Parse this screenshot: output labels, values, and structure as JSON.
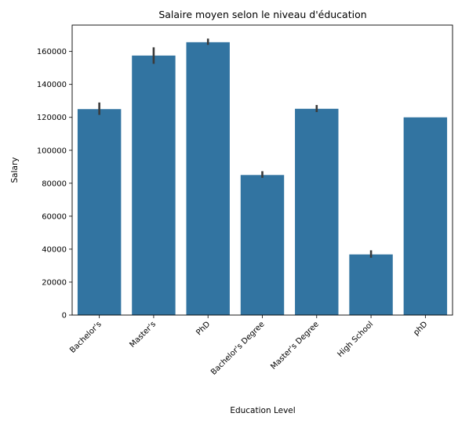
{
  "chart_data": {
    "type": "bar",
    "title": "Salaire moyen selon le niveau d'éducation",
    "xlabel": "Education Level",
    "ylabel": "Salary",
    "categories": [
      "Bachelor's",
      "Master's",
      "PhD",
      "Bachelor's Degree",
      "Master's Degree",
      "High School",
      "phD"
    ],
    "values": [
      125000,
      157500,
      165600,
      85000,
      125200,
      36800,
      120000
    ],
    "error_low": [
      121500,
      152500,
      164000,
      83300,
      123200,
      34800,
      120000
    ],
    "error_high": [
      129000,
      162500,
      167800,
      87300,
      127500,
      39300,
      120000
    ],
    "ylim": [
      0,
      176000
    ],
    "yticks": [
      0,
      20000,
      40000,
      60000,
      80000,
      100000,
      120000,
      140000,
      160000
    ],
    "xtick_rotation": 45,
    "grid": false,
    "legend": "none",
    "bar_color": "#3274a1",
    "error_color": "#3b3b3b"
  }
}
